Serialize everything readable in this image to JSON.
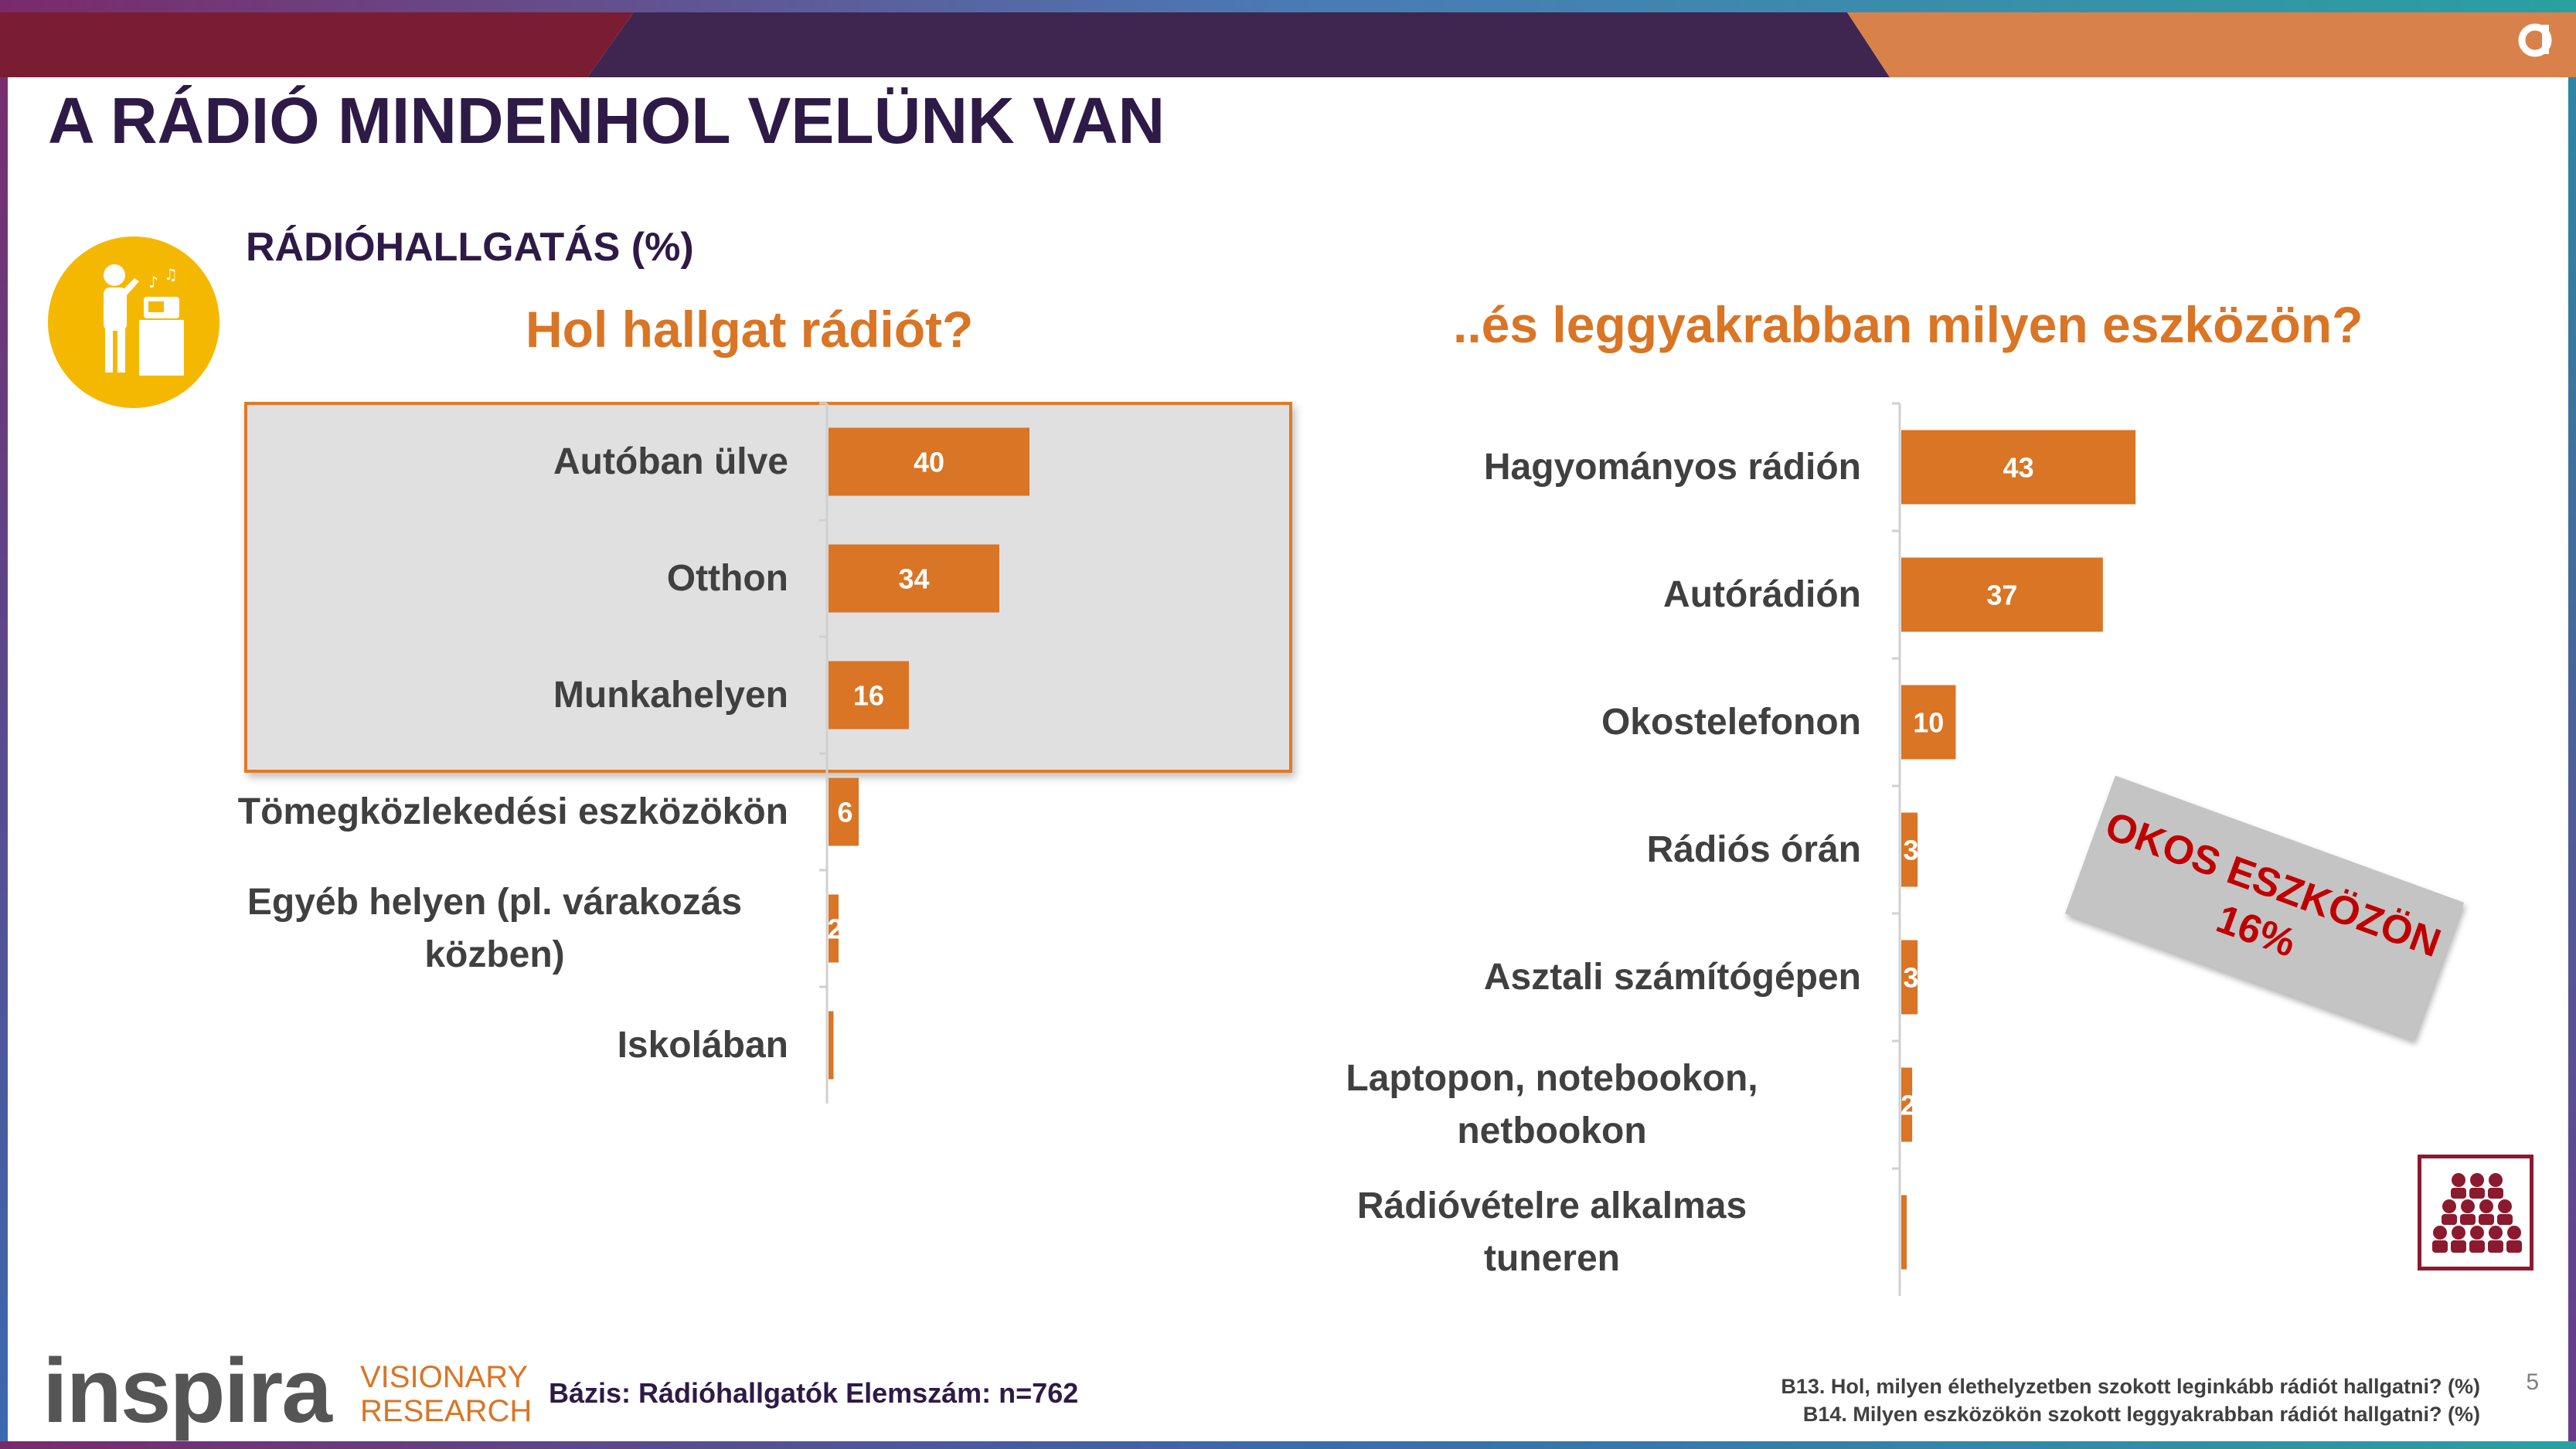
{
  "title": "A RÁDIÓ MINDENHOL VELÜNK VAN",
  "subheading": "RÁDIÓHALLGATÁS (%)",
  "stamp": {
    "line1": "OKOS ESZKÖZÖN",
    "line2": "16%"
  },
  "footer": {
    "base": "Bázis: Rádióhallgatók Elemszám: n=762",
    "note_line1": "B13. Hol, milyen élethelyzetben szokott leginkább rádiót hallgatni? (%)",
    "note_line2": "B14. Milyen eszközökön szokott leggyakrabban rádiót hallgatni? (%)",
    "page_number": "5"
  },
  "logo": {
    "name": "inspira",
    "tag_line1": "VISIONARY",
    "tag_line2": "RESEARCH"
  },
  "colors": {
    "bar": "#d97525",
    "title": "#2e1a47",
    "accent": "#d97525",
    "stamp_text": "#c00000"
  },
  "icons": [
    "radio-listener-icon",
    "audience-icon",
    "brand-a-icon"
  ],
  "chart_data": [
    {
      "type": "bar",
      "orientation": "horizontal",
      "title": "Hol hallgat rádiót?",
      "categories": [
        "Autóban ülve",
        "Otthon",
        "Munkahelyen",
        "Tömegközlekedési eszközökön",
        "Egyéb helyen (pl. várakozás\nközben)",
        "Iskolában"
      ],
      "values": [
        40,
        34,
        16,
        6,
        2,
        1
      ],
      "value_labels": [
        "40",
        "34",
        "16",
        "6",
        "2",
        ""
      ],
      "xlim": [
        0,
        100
      ],
      "highlighted": [
        "Autóban ülve",
        "Otthon",
        "Munkahelyen"
      ],
      "grid": false
    },
    {
      "type": "bar",
      "orientation": "horizontal",
      "title": "..és leggyakrabban milyen eszközön?",
      "categories": [
        "Hagyományos rádión",
        "Autórádión",
        "Okostelefonon",
        "Rádiós órán",
        "Asztali számítógépen",
        "Laptopon, notebookon,\nnetbookon",
        "Rádióvételre alkalmas\ntuneren"
      ],
      "values": [
        43,
        37,
        10,
        3,
        3,
        2,
        1
      ],
      "value_labels": [
        "43",
        "37",
        "10",
        "3",
        "3",
        "2",
        ""
      ],
      "xlim": [
        0,
        100
      ],
      "grid": false
    }
  ]
}
